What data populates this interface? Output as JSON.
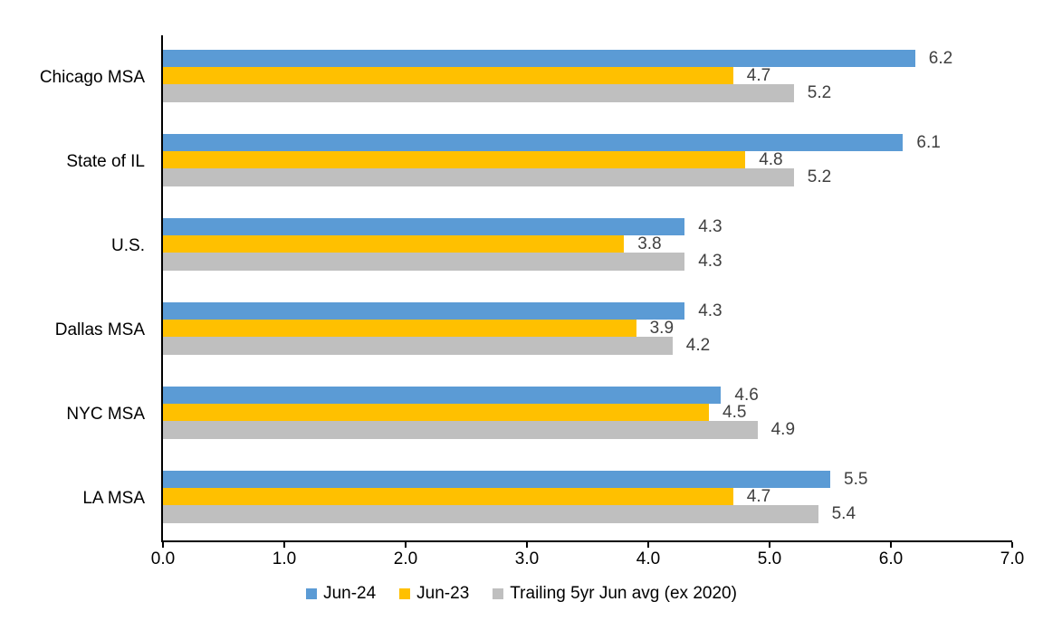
{
  "chart_data": {
    "type": "bar",
    "orientation": "horizontal",
    "categories": [
      "Chicago MSA",
      "State of IL",
      "U.S.",
      "Dallas MSA",
      "NYC MSA",
      "LA MSA"
    ],
    "series": [
      {
        "name": "Jun-24",
        "color": "#5B9BD5",
        "values": [
          6.2,
          6.1,
          4.3,
          4.3,
          4.6,
          5.5
        ]
      },
      {
        "name": "Jun-23",
        "color": "#FFC000",
        "values": [
          4.7,
          4.8,
          3.8,
          3.9,
          4.5,
          4.7
        ]
      },
      {
        "name": "Trailing 5yr Jun avg (ex 2020)",
        "color": "#BFBFBF",
        "values": [
          5.2,
          5.2,
          4.3,
          4.2,
          4.9,
          5.4
        ]
      }
    ],
    "xlim": [
      0,
      7
    ],
    "x_ticks": [
      "0.0",
      "1.0",
      "2.0",
      "3.0",
      "4.0",
      "5.0",
      "6.0",
      "7.0"
    ],
    "value_labels": true,
    "value_label_decimals": 1,
    "grid": false,
    "legend_position": "bottom"
  },
  "style": {
    "value_label_color": "#404040",
    "axis_color": "#000000",
    "text_color": "#000000",
    "background": "#FFFFFF"
  }
}
